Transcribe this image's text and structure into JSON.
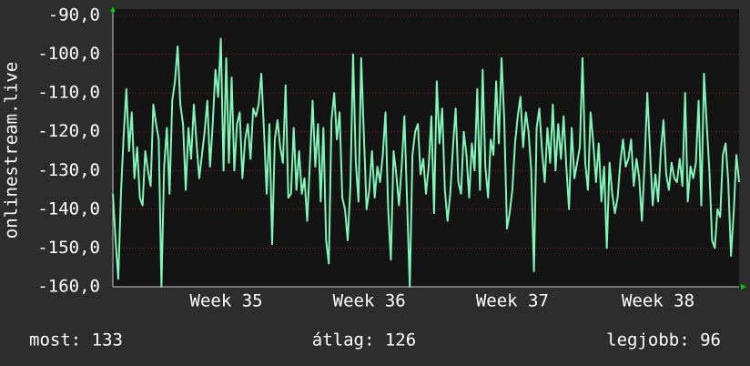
{
  "chart_data": {
    "type": "line",
    "y_label": "onlinestream.live",
    "color": "#7ff5b8",
    "grid": true,
    "ylim": [
      -160,
      -90
    ],
    "yticks": [
      {
        "value": -90,
        "label": "-90,0"
      },
      {
        "value": -100,
        "label": "-100,0"
      },
      {
        "value": -110,
        "label": "-110,0"
      },
      {
        "value": -120,
        "label": "-120,0"
      },
      {
        "value": -130,
        "label": "-130,0"
      },
      {
        "value": -140,
        "label": "-140,0"
      },
      {
        "value": -150,
        "label": "-150,0"
      },
      {
        "value": -160,
        "label": "-160,0"
      }
    ],
    "categories": [
      null,
      null,
      null,
      null,
      null,
      null,
      null,
      null,
      null,
      null,
      null,
      null,
      null,
      null,
      null,
      null,
      null,
      null,
      null,
      null,
      null,
      null,
      null,
      null,
      null,
      null,
      null,
      null,
      null,
      null,
      null,
      null,
      null,
      null,
      null,
      null,
      null,
      null,
      null,
      null,
      null,
      null,
      "Week 35",
      null,
      null,
      null,
      null,
      null,
      null,
      null,
      null,
      null,
      null,
      null,
      null,
      null,
      null,
      null,
      null,
      null,
      null,
      null,
      null,
      null,
      null,
      null,
      null,
      null,
      null,
      null,
      null,
      null,
      null,
      null,
      null,
      null,
      null,
      null,
      null,
      null,
      null,
      null,
      null,
      null,
      null,
      null,
      null,
      null,
      null,
      null,
      null,
      null,
      null,
      null,
      null,
      "Week 36",
      null,
      null,
      null,
      null,
      null,
      null,
      null,
      null,
      null,
      null,
      null,
      null,
      null,
      null,
      null,
      null,
      null,
      null,
      null,
      null,
      null,
      null,
      null,
      null,
      null,
      null,
      null,
      null,
      null,
      null,
      null,
      null,
      null,
      null,
      null,
      null,
      null,
      null,
      null,
      null,
      null,
      null,
      null,
      null,
      null,
      null,
      null,
      null,
      null,
      null,
      null,
      null,
      "Week 37",
      null,
      null,
      null,
      null,
      null,
      null,
      null,
      null,
      null,
      null,
      null,
      null,
      null,
      null,
      null,
      null,
      null,
      null,
      null,
      null,
      null,
      null,
      null,
      null,
      null,
      null,
      null,
      null,
      null,
      null,
      null,
      null,
      null,
      null,
      null,
      null,
      null,
      null,
      null,
      null,
      null,
      null,
      null,
      null,
      null,
      null,
      null,
      null,
      null,
      null,
      null,
      null,
      null,
      "Week 38",
      null,
      null,
      null,
      null,
      null,
      null,
      null,
      null,
      null,
      null,
      null,
      null,
      null,
      null,
      null,
      null,
      null,
      null,
      null,
      null,
      null,
      null,
      null,
      null,
      null,
      null,
      null,
      null,
      null,
      null
    ],
    "values": [
      -136,
      -148,
      -158,
      -136,
      -121,
      -109,
      -125,
      -115,
      -132,
      -124,
      -137,
      -139,
      -125,
      -130,
      -134,
      -113,
      -118,
      -122,
      -160,
      -129,
      -119,
      -136,
      -112,
      -107,
      -98,
      -113,
      -118,
      -135,
      -119,
      -127,
      -113,
      -123,
      -132,
      -126,
      -120,
      -112,
      -129,
      -118,
      -104,
      -111,
      -96,
      -130,
      -101,
      -128,
      -106,
      -130,
      -118,
      -115,
      -132,
      -122,
      -118,
      -127,
      -114,
      -116,
      -113,
      -105,
      -120,
      -136,
      -118,
      -149,
      -122,
      -117,
      -124,
      -128,
      -108,
      -137,
      -136,
      -119,
      -135,
      -125,
      -136,
      -132,
      -143,
      -128,
      -112,
      -129,
      -118,
      -138,
      -119,
      -148,
      -154,
      -117,
      -110,
      -122,
      -115,
      -137,
      -140,
      -148,
      -134,
      -100,
      -128,
      -138,
      -101,
      -121,
      -140,
      -135,
      -125,
      -137,
      -129,
      -133,
      -126,
      -115,
      -140,
      -153,
      -125,
      -131,
      -139,
      -129,
      -116,
      -138,
      -160,
      -126,
      -120,
      -118,
      -131,
      -127,
      -136,
      -129,
      -116,
      -141,
      -107,
      -123,
      -114,
      -135,
      -143,
      -136,
      -124,
      -114,
      -133,
      -136,
      -120,
      -126,
      -137,
      -123,
      -130,
      -109,
      -135,
      -104,
      -129,
      -137,
      -122,
      -126,
      -107,
      -123,
      -101,
      -117,
      -145,
      -141,
      -135,
      -123,
      -116,
      -111,
      -124,
      -115,
      -120,
      -130,
      -156,
      -119,
      -114,
      -125,
      -133,
      -119,
      -128,
      -113,
      -130,
      -118,
      -127,
      -116,
      -129,
      -140,
      -119,
      -132,
      -128,
      -124,
      -101,
      -128,
      -135,
      -115,
      -123,
      -133,
      -123,
      -138,
      -129,
      -150,
      -128,
      -136,
      -141,
      -137,
      -128,
      -122,
      -129,
      -127,
      -122,
      -134,
      -127,
      -132,
      -143,
      -128,
      -110,
      -125,
      -139,
      -131,
      -138,
      -125,
      -117,
      -131,
      -135,
      -128,
      -132,
      -133,
      -127,
      -134,
      -110,
      -138,
      -129,
      -132,
      -128,
      -112,
      -139,
      -105,
      -118,
      -130,
      -148,
      -150,
      -140,
      -142,
      -126,
      -123,
      -133,
      -152,
      -141,
      -126,
      -133
    ],
    "footer": [
      "most: 133",
      "átlag: 126",
      "legjobb: 96"
    ]
  }
}
